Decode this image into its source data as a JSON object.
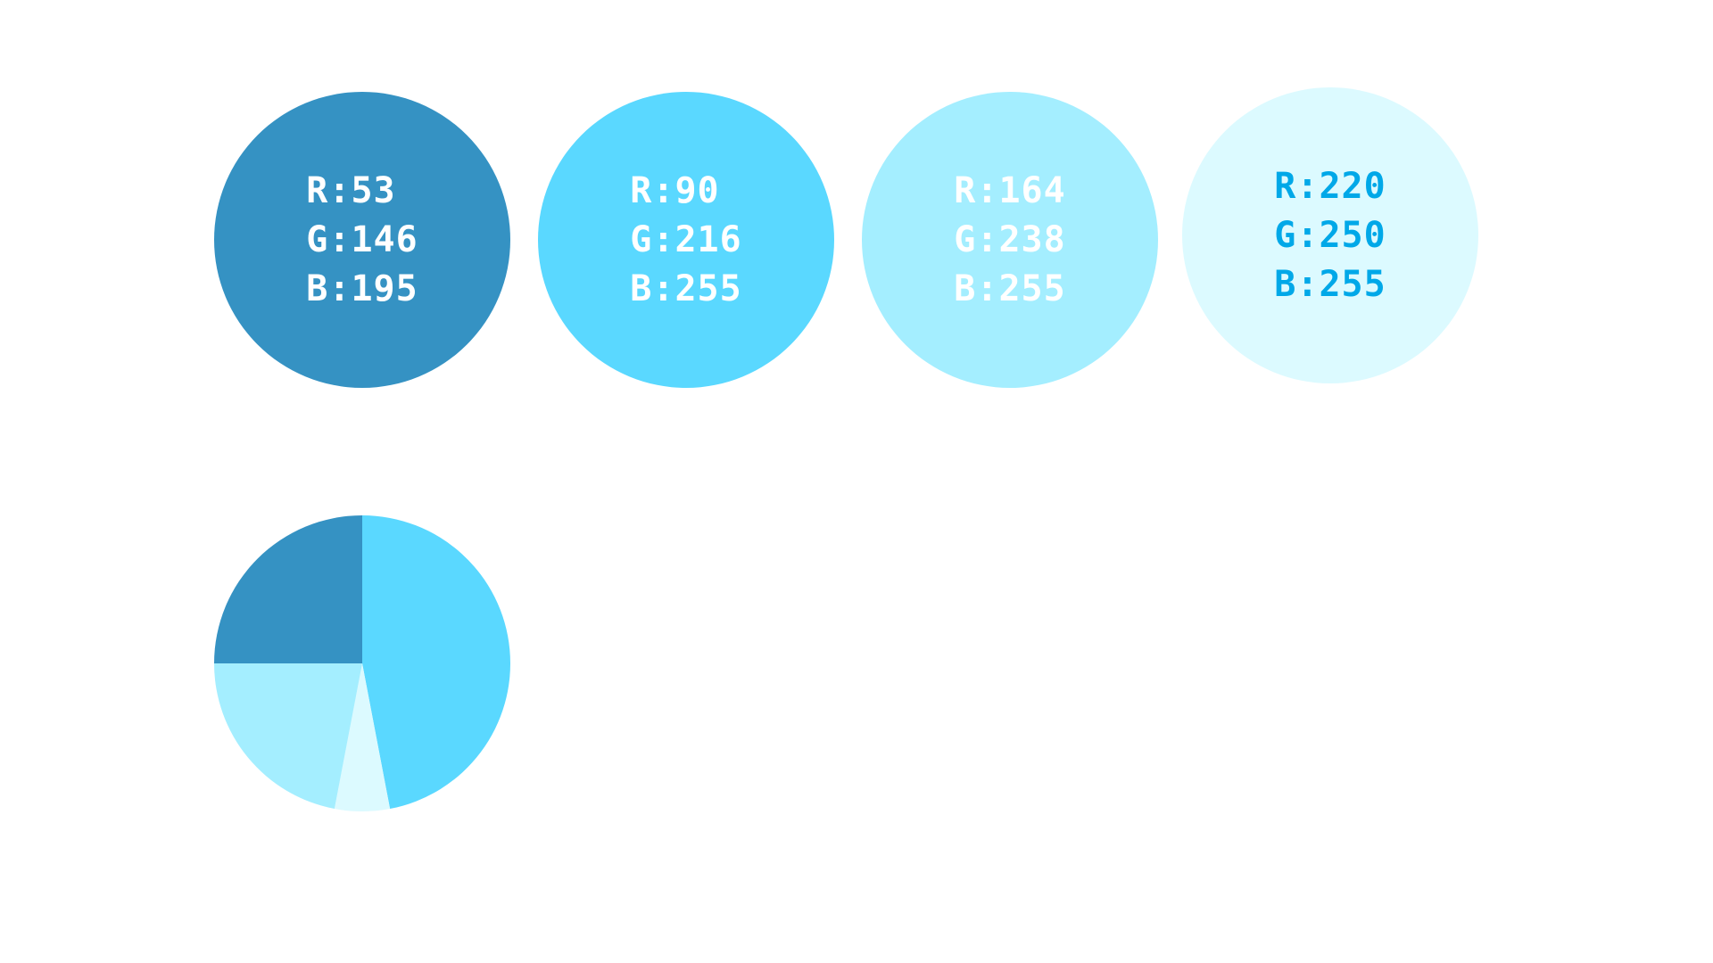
{
  "swatches": [
    {
      "fill": "#3592C3",
      "text_color": "#FFFFFF",
      "lines": [
        "R:53",
        "G:146",
        "B:195"
      ]
    },
    {
      "fill": "#5AD8FF",
      "text_color": "#FFFFFF",
      "lines": [
        "R:90",
        "G:216",
        "B:255"
      ]
    },
    {
      "fill": "#A4EEFF",
      "text_color": "#FFFFFF",
      "lines": [
        "R:164",
        "G:238",
        "B:255"
      ]
    },
    {
      "fill": "#DCFAFF",
      "text_color": "#00A8E8",
      "lines": [
        "R:220",
        "G:250",
        "B:255"
      ]
    }
  ],
  "chart_data": {
    "type": "pie",
    "title": "",
    "slices": [
      {
        "value": 47,
        "color": "#5AD8FF"
      },
      {
        "value": 6,
        "color": "#DCFAFF"
      },
      {
        "value": 22,
        "color": "#A4EEFF"
      },
      {
        "value": 25,
        "color": "#3592C3"
      }
    ],
    "start_angle_deg": 0,
    "direction": "clockwise",
    "legend": "none"
  }
}
